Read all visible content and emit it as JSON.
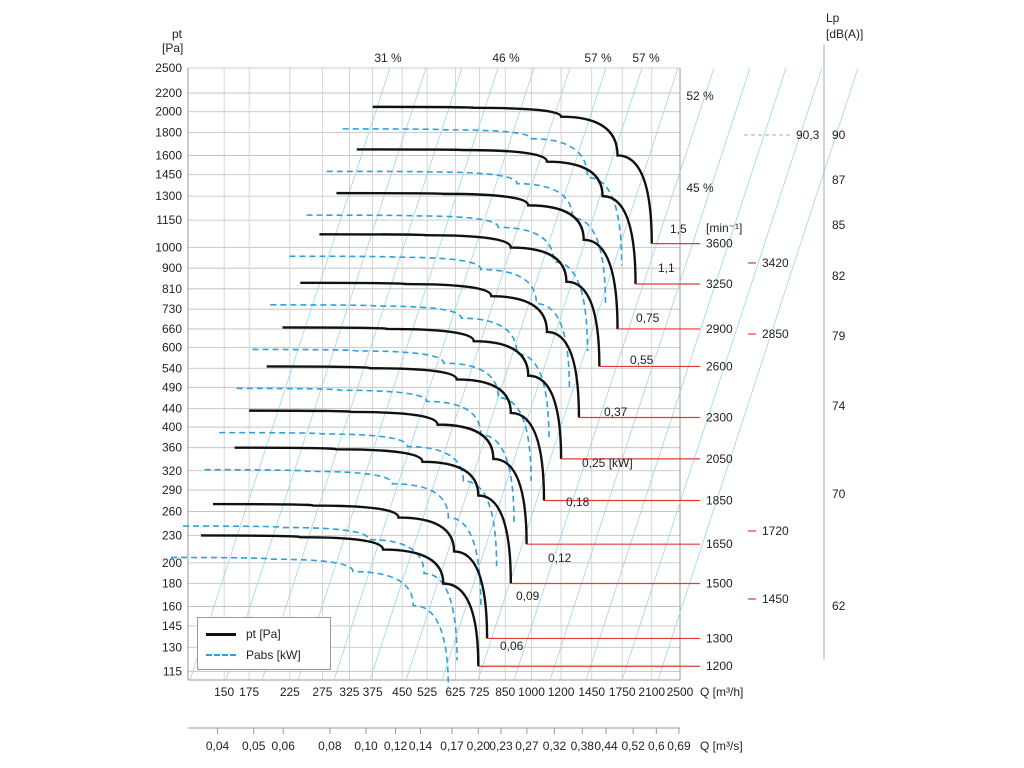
{
  "chart_data": {
    "type": "line",
    "y_axis": {
      "label": "pt",
      "unit": "[Pa]",
      "ticks": [
        115,
        130,
        145,
        160,
        180,
        200,
        230,
        260,
        290,
        320,
        360,
        400,
        440,
        490,
        540,
        600,
        660,
        730,
        810,
        900,
        1000,
        1150,
        1300,
        1450,
        1600,
        1800,
        2000,
        2200,
        2500
      ],
      "scale": "log"
    },
    "x_axis_flow_h": {
      "label": "Q [m³/h]",
      "ticks": [
        "150",
        "175",
        "225",
        "275",
        "325",
        "375",
        "450",
        "525",
        "625",
        "725",
        "850",
        "1000",
        "1200",
        "1450",
        "1750",
        "2100",
        "2500"
      ]
    },
    "x_axis_flow_s": {
      "label": "Q [m³/s]",
      "ticks": [
        "0,04",
        "0,05",
        "0,06",
        "0,08",
        "0,10",
        "0,12",
        "0,14",
        "0,17",
        "0,20",
        "0,23",
        "0,27",
        "0,32",
        "0,38",
        "0,44",
        "0,52",
        "0,6",
        "0,69"
      ]
    },
    "right_axis": {
      "label": "Lp",
      "unit": "[dB(A)]",
      "ticks": [
        "90",
        "87",
        "85",
        "82",
        "79",
        "74",
        "70",
        "62"
      ],
      "reference": "90,3"
    },
    "efficiency_labels": [
      "31 %",
      "46 %",
      "57 %",
      "57 %",
      "52 %",
      "45 %"
    ],
    "speed_unit": "[min⁻¹]",
    "speeds": [
      "3600",
      "3250",
      "2900",
      "2600",
      "2300",
      "2050",
      "1850",
      "1650",
      "1500",
      "1300",
      "1200"
    ],
    "speeds_secondary": [
      "3420",
      "2850",
      "1720",
      "1450"
    ],
    "power_labels": [
      "1,5",
      "1,1",
      "0,75",
      "0,55",
      "0,37",
      "0,25 [kW]",
      "0,18",
      "0,12",
      "0,09",
      "0,06"
    ],
    "series": [
      {
        "speed": "3600",
        "pt": {
          "x": [
            375,
            700,
            1200,
            1700,
            2100
          ],
          "y": [
            2050,
            2040,
            1950,
            1600,
            1020
          ]
        }
      },
      {
        "speed": "3250",
        "pt": {
          "x": [
            340,
            650,
            1100,
            1550,
            1900
          ],
          "y": [
            1650,
            1645,
            1550,
            1300,
            830
          ]
        }
      },
      {
        "speed": "2900",
        "pt": {
          "x": [
            300,
            580,
            980,
            1380,
            1700
          ],
          "y": [
            1320,
            1315,
            1240,
            1040,
            660
          ]
        }
      },
      {
        "speed": "2600",
        "pt": {
          "x": [
            270,
            520,
            880,
            1240,
            1520
          ],
          "y": [
            1070,
            1065,
            1000,
            840,
            545
          ]
        }
      },
      {
        "speed": "2300",
        "pt": {
          "x": [
            240,
            460,
            780,
            1100,
            1340
          ],
          "y": [
            835,
            830,
            780,
            650,
            420
          ]
        }
      },
      {
        "speed": "2050",
        "pt": {
          "x": [
            215,
            410,
            700,
            980,
            1200
          ],
          "y": [
            665,
            660,
            620,
            520,
            340
          ]
        }
      },
      {
        "speed": "1850",
        "pt": {
          "x": [
            195,
            370,
            630,
            880,
            1080
          ],
          "y": [
            545,
            540,
            510,
            430,
            275
          ]
        }
      },
      {
        "speed": "1650",
        "pt": {
          "x": [
            175,
            330,
            560,
            790,
            970
          ],
          "y": [
            435,
            432,
            405,
            340,
            220
          ]
        }
      },
      {
        "speed": "1500",
        "pt": {
          "x": [
            160,
            300,
            510,
            720,
            880
          ],
          "y": [
            360,
            357,
            335,
            282,
            180
          ]
        }
      },
      {
        "speed": "1300",
        "pt": {
          "x": [
            140,
            260,
            440,
            620,
            760
          ],
          "y": [
            270,
            268,
            252,
            212,
            136
          ]
        }
      },
      {
        "speed": "1200",
        "pt": {
          "x": [
            130,
            240,
            400,
            580,
            720
          ],
          "y": [
            230,
            228,
            214,
            180,
            118
          ]
        }
      }
    ],
    "legend": [
      {
        "name": "pt [Pa]"
      },
      {
        "name": "Pabs [kW]"
      }
    ]
  },
  "legend_labels": {
    "pt": "pt [Pa]",
    "pabs": "Pabs [kW]"
  }
}
